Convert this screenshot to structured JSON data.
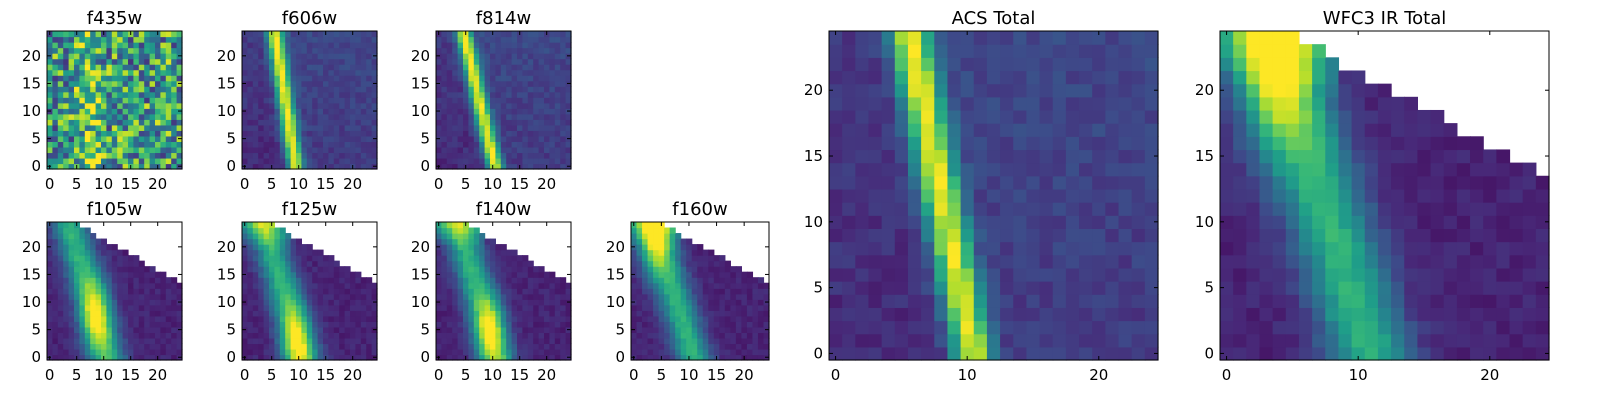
{
  "chart_data": [
    {
      "type": "heatmap",
      "title": "f435w",
      "grid": false,
      "xlim": [
        0,
        25
      ],
      "ylim": [
        0,
        25
      ],
      "xticks": [
        0,
        5,
        10,
        15,
        20
      ],
      "yticks": [
        0,
        5,
        10,
        15,
        20
      ],
      "pattern": {
        "kind": "noise",
        "trail_top_x": 7,
        "trail_bottom_x": 9
      }
    },
    {
      "type": "heatmap",
      "title": "f606w",
      "grid": false,
      "xlim": [
        0,
        25
      ],
      "ylim": [
        0,
        25
      ],
      "xticks": [
        0,
        5,
        10,
        15,
        20
      ],
      "yticks": [
        0,
        5,
        10,
        15,
        20
      ],
      "pattern": {
        "kind": "trail",
        "trail_top_x": 6,
        "trail_bottom_x": 10
      }
    },
    {
      "type": "heatmap",
      "title": "f814w",
      "grid": false,
      "xlim": [
        0,
        25
      ],
      "ylim": [
        0,
        25
      ],
      "xticks": [
        0,
        5,
        10,
        15,
        20
      ],
      "yticks": [
        0,
        5,
        10,
        15,
        20
      ],
      "pattern": {
        "kind": "trail",
        "trail_top_x": 5,
        "trail_bottom_x": 11
      }
    },
    {
      "type": "heatmap",
      "title": "f105w",
      "grid": false,
      "xlim": [
        0,
        25
      ],
      "ylim": [
        0,
        25
      ],
      "xticks": [
        0,
        5,
        10,
        15,
        20
      ],
      "yticks": [
        0,
        5,
        10,
        15,
        20
      ],
      "pattern": {
        "kind": "ir",
        "peak_x": 9,
        "peak_y": 8,
        "top_bright": false
      }
    },
    {
      "type": "heatmap",
      "title": "f125w",
      "grid": false,
      "xlim": [
        0,
        25
      ],
      "ylim": [
        0,
        25
      ],
      "xticks": [
        0,
        5,
        10,
        15,
        20
      ],
      "yticks": [
        0,
        5,
        10,
        15,
        20
      ],
      "pattern": {
        "kind": "ir",
        "peak_x": 10,
        "peak_y": 3,
        "top_bright": true
      }
    },
    {
      "type": "heatmap",
      "title": "f140w",
      "grid": false,
      "xlim": [
        0,
        25
      ],
      "ylim": [
        0,
        25
      ],
      "xticks": [
        0,
        5,
        10,
        15,
        20
      ],
      "yticks": [
        0,
        5,
        10,
        15,
        20
      ],
      "pattern": {
        "kind": "ir",
        "peak_x": 10,
        "peak_y": 5,
        "top_bright": true
      }
    },
    {
      "type": "heatmap",
      "title": "f160w",
      "grid": false,
      "xlim": [
        0,
        25
      ],
      "ylim": [
        0,
        25
      ],
      "xticks": [
        0,
        5,
        10,
        15,
        20
      ],
      "yticks": [
        0,
        5,
        10,
        15,
        20
      ],
      "pattern": {
        "kind": "ir",
        "peak_x": 4,
        "peak_y": 22,
        "top_bright": true
      }
    },
    {
      "type": "heatmap",
      "title": "ACS Total",
      "grid": false,
      "xlim": [
        0,
        25
      ],
      "ylim": [
        0,
        25
      ],
      "xticks": [
        0,
        10,
        20
      ],
      "yticks": [
        0,
        5,
        10,
        15,
        20
      ],
      "pattern": {
        "kind": "trail",
        "trail_top_x": 6,
        "trail_bottom_x": 11
      }
    },
    {
      "type": "heatmap",
      "title": "WFC3 IR Total",
      "grid": false,
      "xlim": [
        0,
        25
      ],
      "ylim": [
        0,
        25
      ],
      "xticks": [
        0,
        10,
        20
      ],
      "yticks": [
        0,
        5,
        10,
        15,
        20
      ],
      "pattern": {
        "kind": "ir",
        "peak_x": 4,
        "peak_y": 22,
        "top_bright": true
      }
    }
  ]
}
